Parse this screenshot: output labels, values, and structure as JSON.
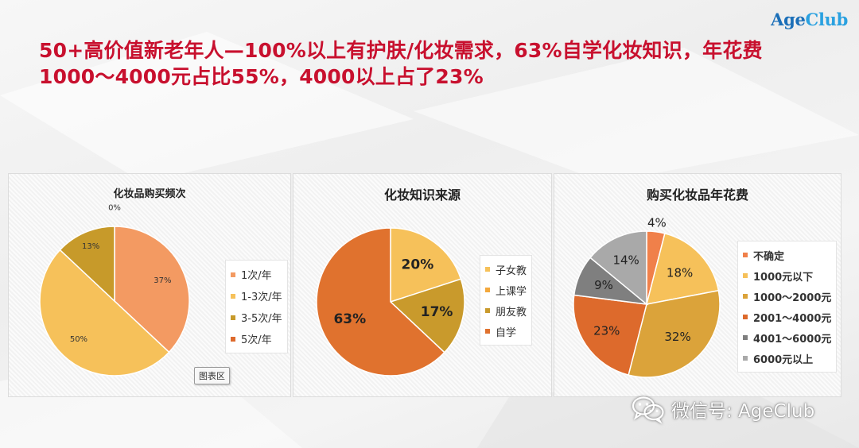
{
  "brand": {
    "logo_main": "Age",
    "logo_accent": "Club"
  },
  "headline": {
    "line1": "50+高价值新老年人—100%以上有护肤/化妆需求，63%自学化妆知识，年花费",
    "line2": "1000～4000元占比55%，4000以上占了23%"
  },
  "tooltip": "图表区",
  "watermark": {
    "text": "微信号: AgeClub",
    "icon": "wechat-icon"
  },
  "chart_data": [
    {
      "type": "pie",
      "title": "化妆品购买频次",
      "categories": [
        "1次/年",
        "1-3次/年",
        "3-5次/年",
        "5次/年"
      ],
      "values": [
        37,
        50,
        13,
        0
      ],
      "labels": [
        "37%",
        "50%",
        "13%",
        "0%"
      ],
      "colors": [
        "#f39a62",
        "#f6c15a",
        "#c79a2a",
        "#dd6a2c"
      ],
      "legend_position": "right"
    },
    {
      "type": "pie",
      "title": "化妆知识来源",
      "categories": [
        "子女教",
        "上课学",
        "朋友教",
        "自学"
      ],
      "values": [
        20,
        0,
        17,
        63
      ],
      "labels": [
        "20%",
        "",
        "17%",
        "63%"
      ],
      "colors": [
        "#f6c15a",
        "#f3a83c",
        "#c99a2c",
        "#e0722e"
      ],
      "legend_position": "right"
    },
    {
      "type": "pie",
      "title": "购买化妆品年花费",
      "categories": [
        "不确定",
        "1000元以下",
        "1000～2000元",
        "2001～4000元",
        "4001～6000元",
        "6000元以上"
      ],
      "values": [
        4,
        18,
        32,
        23,
        9,
        14
      ],
      "labels": [
        "4%",
        "18%",
        "32%",
        "23%",
        "9%",
        "14%"
      ],
      "colors": [
        "#f0804a",
        "#f6c15a",
        "#dba33a",
        "#dd6a2c",
        "#7f7f7f",
        "#a9a9a9"
      ],
      "legend_position": "right"
    }
  ]
}
